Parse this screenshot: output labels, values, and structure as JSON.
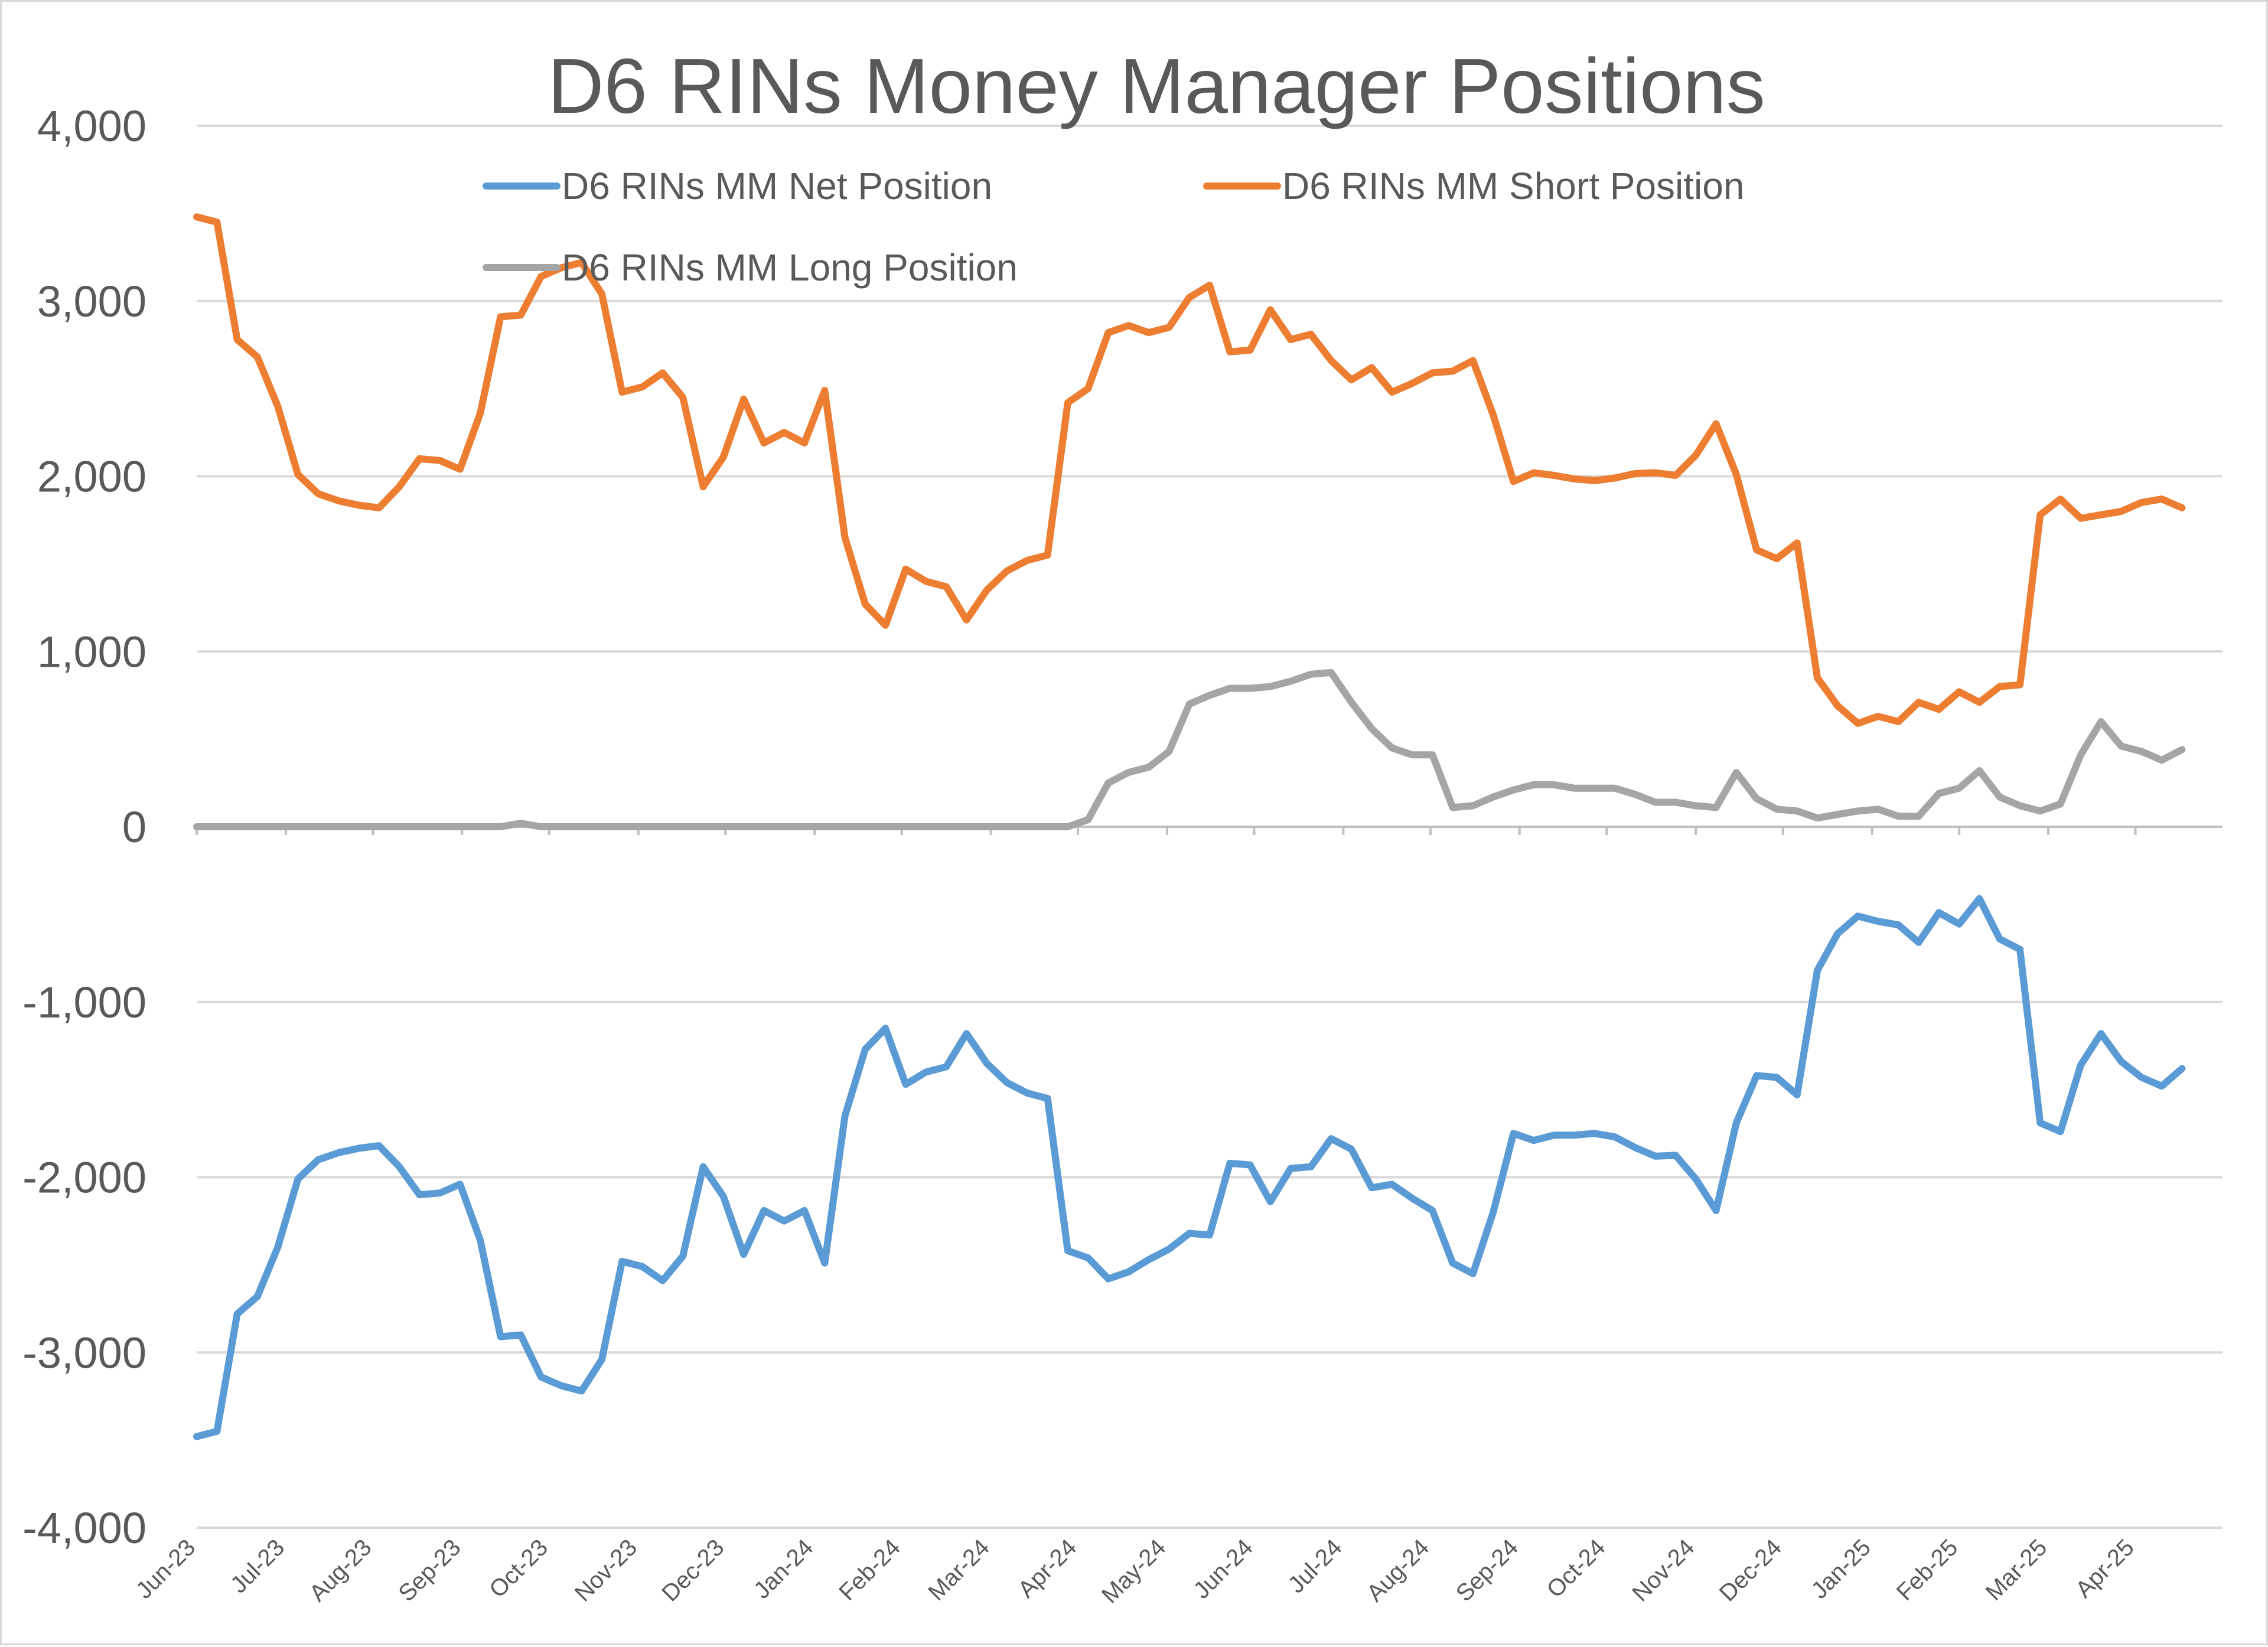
{
  "chart_data": {
    "type": "line",
    "title": "D6 RINs Money Manager Positions",
    "xlabel": "",
    "ylabel": "",
    "ylim": [
      -4000,
      4000
    ],
    "yticks": [
      4000,
      3000,
      2000,
      1000,
      0,
      -1000,
      -2000,
      -3000,
      -4000
    ],
    "ytick_labels": [
      "4,000",
      "3,000",
      "2,000",
      "1,000",
      "0",
      "-1,000",
      "-2,000",
      "-3,000",
      "-4,000"
    ],
    "x_tick_labels": [
      "Jun-23",
      "Jul-23",
      "Aug-23",
      "Sep-23",
      "Oct-23",
      "Nov-23",
      "Dec-23",
      "Jan-24",
      "Feb-24",
      "Mar-24",
      "Apr-24",
      "May-24",
      "Jun-24",
      "Jul-24",
      "Aug-24",
      "Sep-24",
      "Oct-24",
      "Nov-24",
      "Dec-24",
      "Jan-25",
      "Feb-25",
      "Mar-25",
      "Apr-25"
    ],
    "x_tick_positions": [
      0,
      4.4,
      8.7,
      13.1,
      17.4,
      21.8,
      26.1,
      30.5,
      34.8,
      39.2,
      43.5,
      47.9,
      52.2,
      56.6,
      60.9,
      65.3,
      69.6,
      74.0,
      78.3,
      82.7,
      87.0,
      91.4,
      95.7
    ],
    "x_max": 100,
    "grid": true,
    "legend_position": "top",
    "series": [
      {
        "name": "D6 RINs MM Net Position",
        "color": "#5b9bd5",
        "values": [
          -3480,
          -3450,
          -2780,
          -2680,
          -2400,
          -2010,
          -1900,
          -1860,
          -1835,
          -1820,
          -1940,
          -2100,
          -2090,
          -2040,
          -2360,
          -2910,
          -2900,
          -3140,
          -3190,
          -3220,
          -3040,
          -2480,
          -2510,
          -2590,
          -2450,
          -1940,
          -2110,
          -2440,
          -2190,
          -2250,
          -2190,
          -2490,
          -1650,
          -1270,
          -1150,
          -1470,
          -1400,
          -1370,
          -1180,
          -1350,
          -1460,
          -1520,
          -1550,
          -2420,
          -2460,
          -2580,
          -2540,
          -2470,
          -2410,
          -2320,
          -2330,
          -1920,
          -1930,
          -2140,
          -1950,
          -1940,
          -1780,
          -1840,
          -2060,
          -2040,
          -2120,
          -2190,
          -2490,
          -2550,
          -2200,
          -1750,
          -1790,
          -1760,
          -1760,
          -1750,
          -1770,
          -1830,
          -1880,
          -1875,
          -2010,
          -2190,
          -1690,
          -1420,
          -1430,
          -1530,
          -820,
          -610,
          -510,
          -540,
          -560,
          -660,
          -490,
          -555,
          -410,
          -640,
          -700,
          -1690,
          -1740,
          -1360,
          -1180,
          -1340,
          -1430,
          -1480,
          -1380
        ]
      },
      {
        "name": "D6 RINs MM Short Position",
        "color": "#ed7d31",
        "values": [
          3480,
          3450,
          2780,
          2680,
          2400,
          2010,
          1900,
          1860,
          1835,
          1820,
          1940,
          2100,
          2090,
          2040,
          2360,
          2910,
          2920,
          3140,
          3190,
          3220,
          3040,
          2480,
          2510,
          2590,
          2450,
          1940,
          2110,
          2440,
          2190,
          2250,
          2190,
          2490,
          1650,
          1270,
          1150,
          1470,
          1400,
          1370,
          1180,
          1350,
          1460,
          1520,
          1550,
          2420,
          2500,
          2820,
          2860,
          2820,
          2850,
          3020,
          3090,
          2710,
          2720,
          2950,
          2780,
          2810,
          2660,
          2550,
          2620,
          2480,
          2530,
          2590,
          2600,
          2660,
          2350,
          1970,
          2020,
          2005,
          1985,
          1975,
          1990,
          2015,
          2020,
          2005,
          2120,
          2300,
          2010,
          1580,
          1530,
          1620,
          850,
          690,
          590,
          630,
          600,
          710,
          670,
          770,
          710,
          800,
          810,
          1780,
          1870,
          1760,
          1780,
          1800,
          1850,
          1870,
          1820
        ]
      },
      {
        "name": "D6 RINs MM Long Position",
        "color": "#a5a5a5",
        "values": [
          0,
          0,
          0,
          0,
          0,
          0,
          0,
          0,
          0,
          0,
          0,
          0,
          0,
          0,
          0,
          0,
          20,
          0,
          0,
          0,
          0,
          0,
          0,
          0,
          0,
          0,
          0,
          0,
          0,
          0,
          0,
          0,
          0,
          0,
          0,
          0,
          0,
          0,
          0,
          0,
          0,
          0,
          0,
          0,
          40,
          250,
          310,
          340,
          430,
          700,
          750,
          790,
          790,
          800,
          830,
          870,
          880,
          710,
          560,
          450,
          410,
          410,
          110,
          120,
          170,
          210,
          240,
          240,
          220,
          220,
          220,
          185,
          140,
          140,
          120,
          110,
          310,
          160,
          100,
          90,
          50,
          70,
          90,
          100,
          60,
          60,
          190,
          220,
          320,
          170,
          120,
          90,
          130,
          410,
          600,
          460,
          430,
          380,
          440
        ]
      }
    ]
  }
}
